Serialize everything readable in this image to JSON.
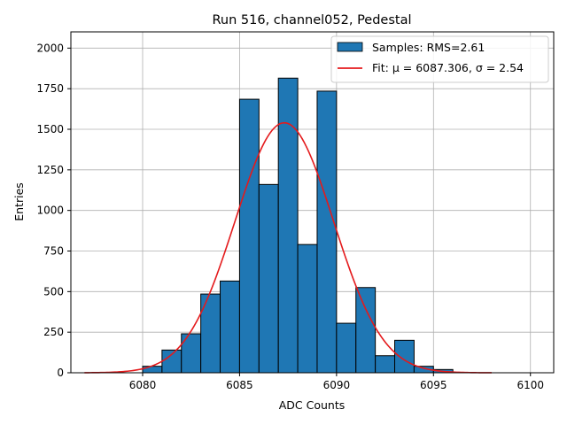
{
  "chart_data": {
    "type": "bar",
    "title": "Run 516, channel052, Pedestal",
    "xlabel": "ADC Counts",
    "ylabel": "Entries",
    "xlim": [
      6076.3,
      6101.2
    ],
    "ylim": [
      0,
      2100
    ],
    "grid": true,
    "xticks": [
      6080,
      6085,
      6090,
      6095,
      6100
    ],
    "yticks": [
      0,
      250,
      500,
      750,
      1000,
      1250,
      1500,
      1750,
      2000
    ],
    "bins": {
      "edges": [
        6077,
        6078,
        6079,
        6080,
        6081,
        6082,
        6083,
        6084,
        6085,
        6086,
        6087,
        6088,
        6089,
        6090,
        6091,
        6092,
        6093,
        6094,
        6095,
        6096,
        6097,
        6098,
        6099,
        6100
      ],
      "counts": [
        0,
        0,
        0,
        40,
        140,
        240,
        485,
        565,
        1685,
        1160,
        1815,
        790,
        1735,
        305,
        525,
        105,
        200,
        40,
        20,
        0,
        0,
        0,
        0
      ]
    },
    "fit": {
      "mu": 6087.306,
      "sigma": 2.54,
      "amplitude": 1540,
      "x_range": [
        6077,
        6098
      ]
    },
    "legend": {
      "position": "top-right",
      "samples_label": "Samples: RMS=2.61",
      "fit_prefix": "Fit: ",
      "fit_mu_label": "μ = 6087.306, ",
      "fit_sigma_label": "σ = 2.54"
    },
    "colors": {
      "bar": "#1f77b4",
      "bar_edge": "#000000",
      "fit": "#e41a1c",
      "grid": "#b0b0b0"
    }
  }
}
